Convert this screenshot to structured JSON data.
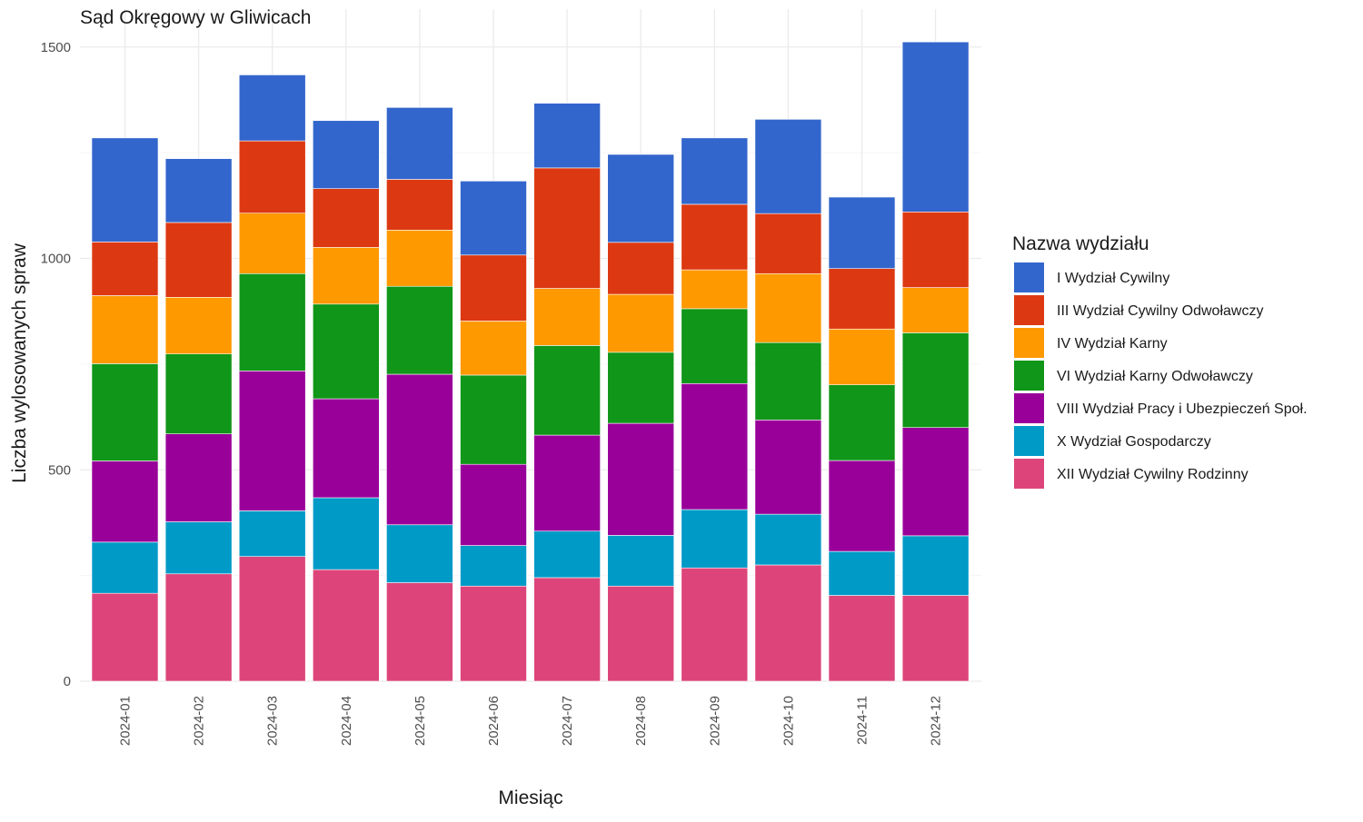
{
  "chart_data": {
    "type": "bar",
    "stacked": true,
    "title": "Sąd Okręgowy w Gliwicach",
    "xlabel": "Miesiąc",
    "ylabel": "Liczba wylosowanych spraw",
    "ylim": [
      0,
      1500
    ],
    "y_ticks": [
      0,
      500,
      1000,
      1500
    ],
    "grid": true,
    "legend": {
      "title": "Nazwa wydziału",
      "position": "right"
    },
    "categories": [
      "2024-01",
      "2024-02",
      "2024-03",
      "2024-04",
      "2024-05",
      "2024-06",
      "2024-07",
      "2024-08",
      "2024-09",
      "2024-10",
      "2024-11",
      "2024-12"
    ],
    "series": [
      {
        "name": "XII Wydział Cywilny Rodzinny",
        "color": "#DD457A",
        "values": [
          208,
          254,
          295,
          264,
          233,
          225,
          245,
          225,
          268,
          275,
          203,
          203
        ]
      },
      {
        "name": "X Wydział Gospodarczy",
        "color": "#009AC7",
        "values": [
          121,
          123,
          108,
          170,
          137,
          96,
          110,
          120,
          138,
          120,
          104,
          141
        ]
      },
      {
        "name": "VIII Wydział Pracy i Ubezpieczeń Społ.",
        "color": "#990099",
        "values": [
          192,
          208,
          331,
          234,
          356,
          192,
          227,
          265,
          298,
          223,
          215,
          256
        ]
      },
      {
        "name": "VI Wydział Karny Odwoławczy",
        "color": "#109618",
        "values": [
          230,
          189,
          230,
          224,
          208,
          211,
          212,
          168,
          177,
          183,
          179,
          224
        ]
      },
      {
        "name": "IV Wydział Karny",
        "color": "#FF9900",
        "values": [
          161,
          134,
          143,
          134,
          133,
          128,
          135,
          137,
          92,
          163,
          132,
          107
        ]
      },
      {
        "name": "III Wydział Cywilny Odwoławczy",
        "color": "#DC3912",
        "values": [
          127,
          177,
          171,
          139,
          120,
          156,
          285,
          123,
          155,
          142,
          143,
          179
        ]
      },
      {
        "name": "I Wydział Cywilny",
        "color": "#3366CC",
        "values": [
          246,
          151,
          156,
          161,
          170,
          175,
          153,
          208,
          157,
          223,
          169,
          402
        ]
      }
    ],
    "legend_order": [
      "I Wydział Cywilny",
      "III Wydział Cywilny Odwoławczy",
      "IV Wydział Karny",
      "VI Wydział Karny Odwoławczy",
      "VIII Wydział Pracy i Ubezpieczeń Społ.",
      "X Wydział Gospodarczy",
      "XII Wydział Cywilny Rodzinny"
    ]
  }
}
